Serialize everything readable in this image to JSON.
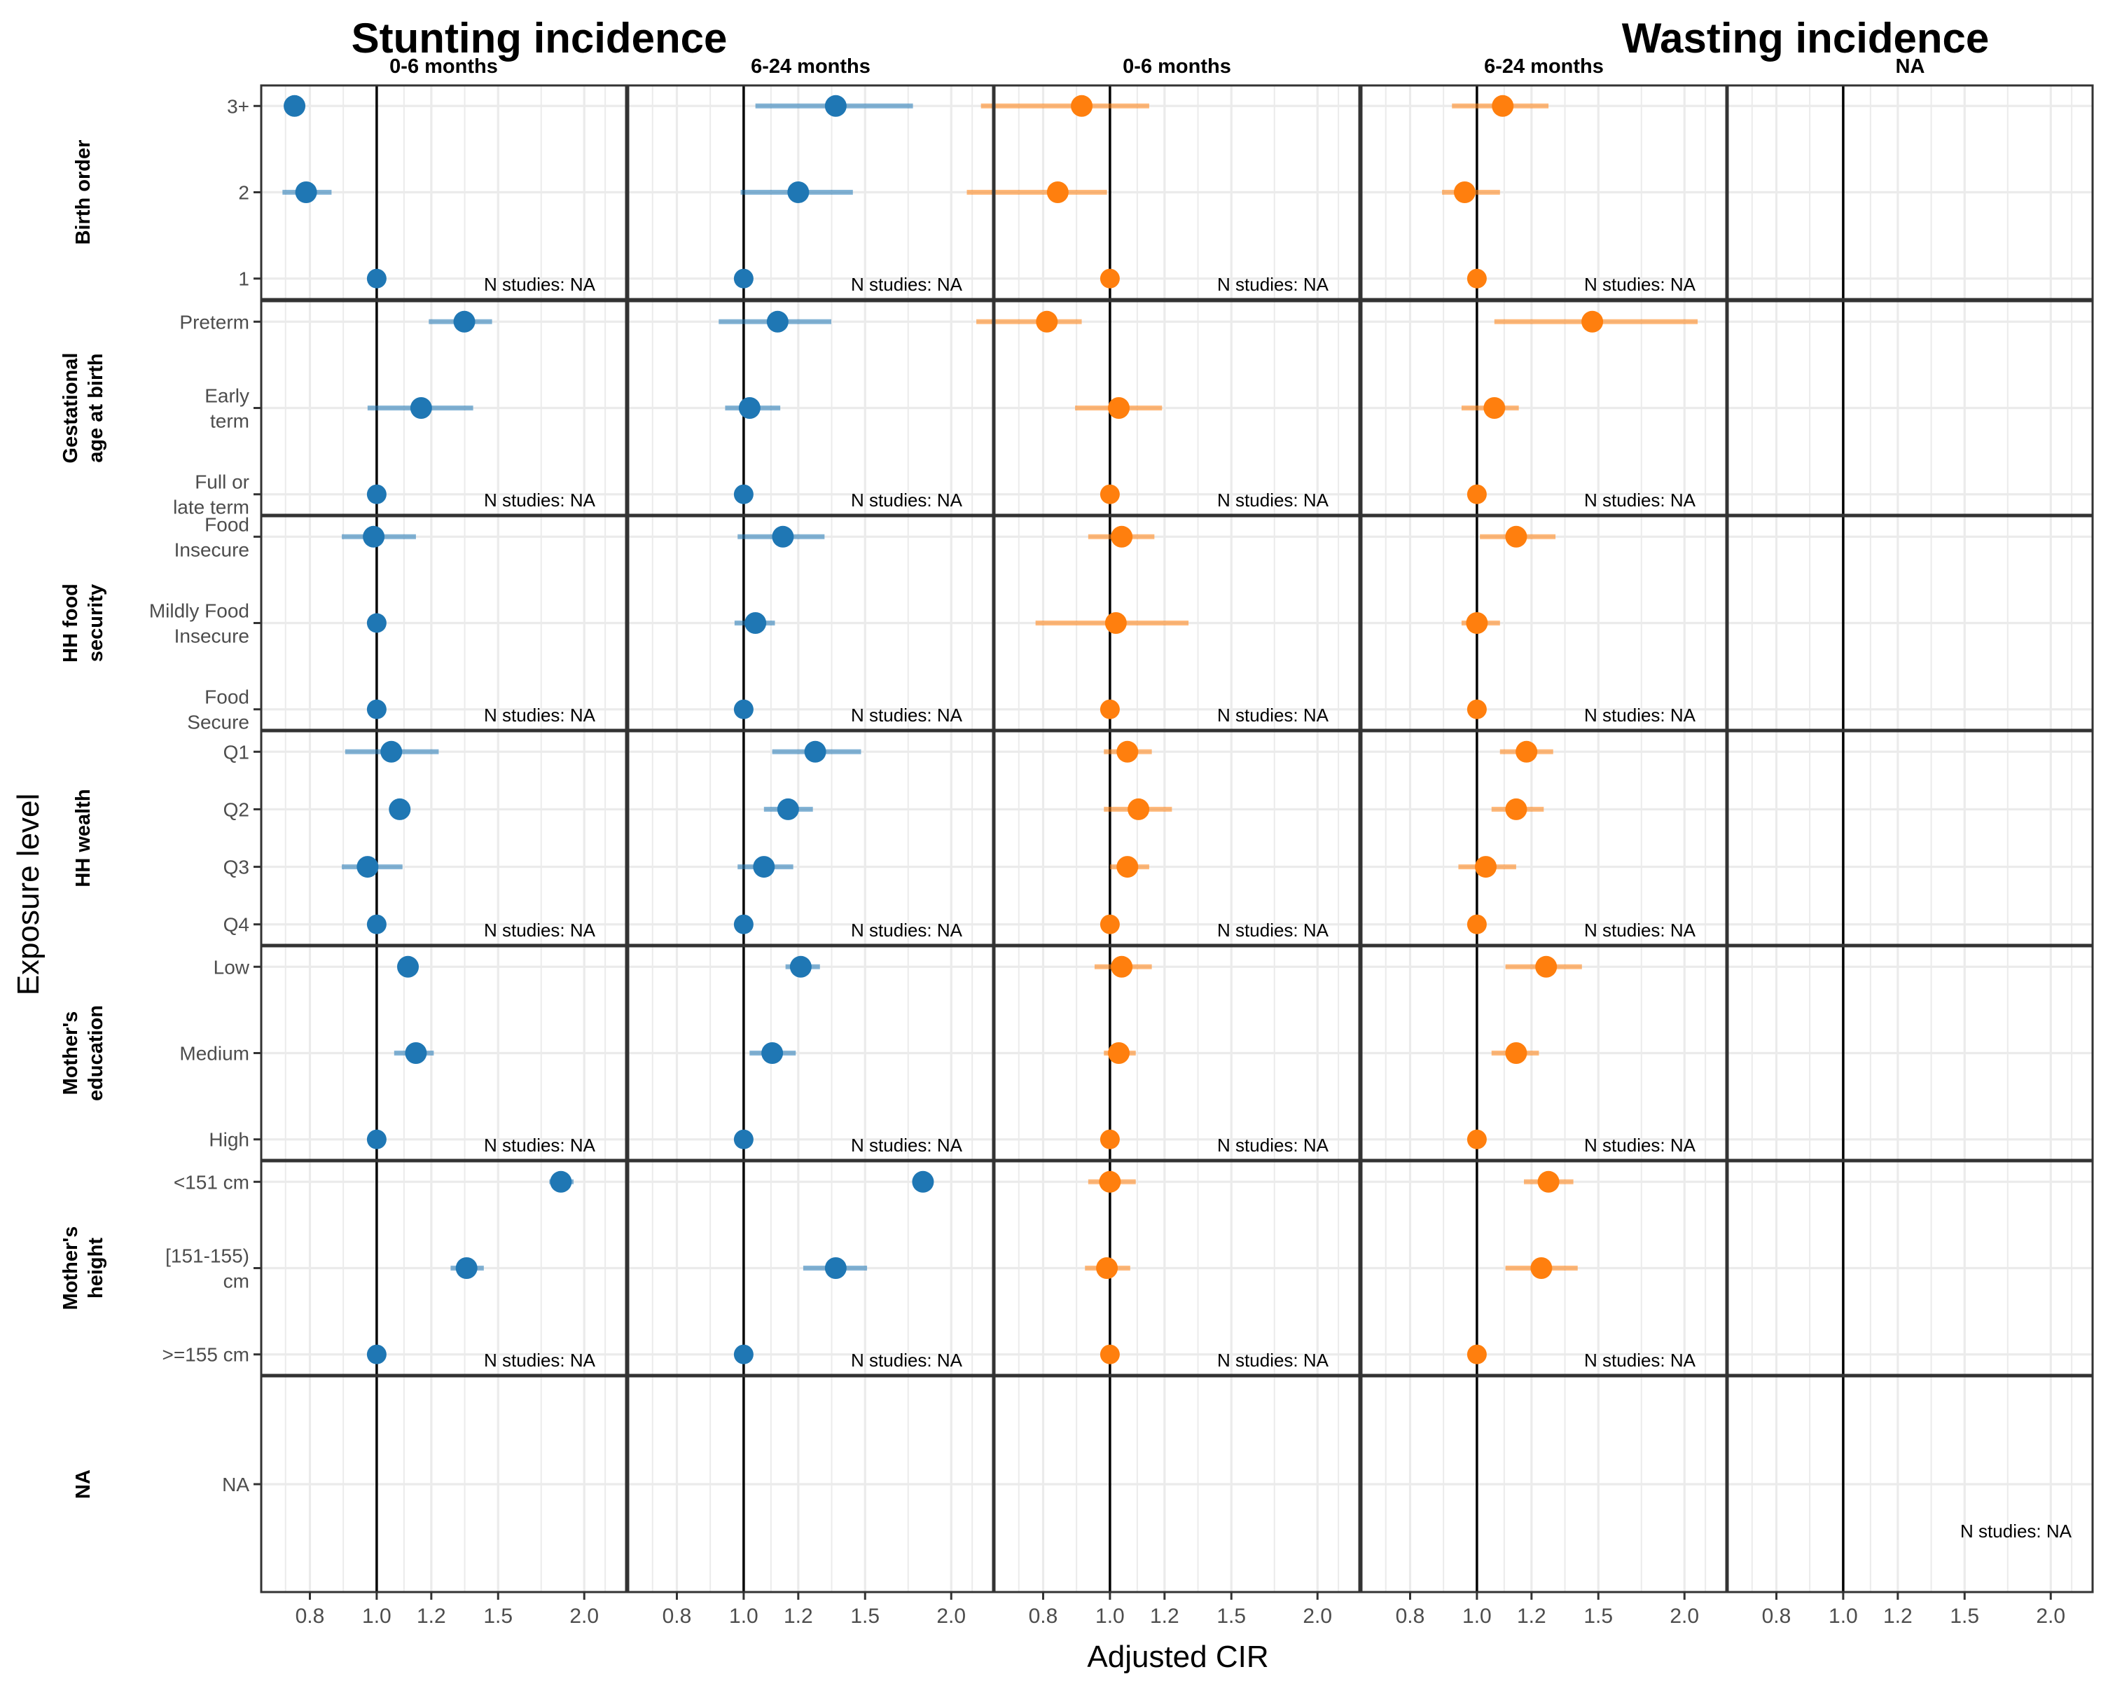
{
  "titles": {
    "left": "Stunting incidence",
    "right": "Wasting incidence"
  },
  "colors": {
    "stunting": "#1F77B4",
    "wasting": "#FF7F0E",
    "frame": "#333333",
    "grid": "#EBEBEB",
    "refline": "#000000"
  },
  "chart_data": {
    "type": "scatter",
    "subtype": "forest-plot",
    "xlabel": "Adjusted CIR",
    "ylabel": "Exposure level",
    "xscale": "log",
    "xlim": [
      0.68,
      2.3
    ],
    "xticks": [
      0.8,
      1.0,
      1.2,
      1.5,
      2.0
    ],
    "xtick_labels": [
      "0.8",
      "1.0",
      "1.2",
      "1.5",
      "2.0"
    ],
    "reference_line": 1.0,
    "grid": true,
    "n_studies_label": "N studies: NA",
    "columns": [
      {
        "label": "0-6 months",
        "outcome": "Stunting incidence",
        "color": "#1F77B4"
      },
      {
        "label": "6-24 months",
        "outcome": "Stunting incidence",
        "color": "#1F77B4"
      },
      {
        "label": "0-6 months",
        "outcome": "Wasting incidence",
        "color": "#FF7F0E"
      },
      {
        "label": "6-24 months",
        "outcome": "Wasting incidence",
        "color": "#FF7F0E"
      },
      {
        "label": "NA",
        "outcome": "NA",
        "color": "#FF7F0E"
      }
    ],
    "rows": [
      {
        "label": "Birth order",
        "levels": [
          "3+",
          "2",
          "1"
        ],
        "cells": [
          [
            {
              "est": 0.76
            },
            {
              "est": 0.79,
              "lo": 0.73,
              "hi": 0.86
            },
            {
              "est": 1.0
            }
          ],
          [
            {
              "est": 1.36,
              "lo": 1.04,
              "hi": 1.76
            },
            {
              "est": 1.2,
              "lo": 0.99,
              "hi": 1.44
            },
            {
              "est": 1.0
            }
          ],
          [
            {
              "est": 0.91,
              "lo": 0.65,
              "hi": 1.14
            },
            {
              "est": 0.84,
              "lo": 0.62,
              "hi": 0.99
            },
            {
              "est": 1.0
            }
          ],
          [
            {
              "est": 1.09,
              "lo": 0.92,
              "hi": 1.27
            },
            {
              "est": 0.96,
              "lo": 0.89,
              "hi": 1.08
            },
            {
              "est": 1.0
            }
          ],
          [
            null,
            null,
            null
          ]
        ]
      },
      {
        "label": "Gestational age at birth",
        "levels": [
          "Preterm",
          "Early term",
          "Full or late term"
        ],
        "cells": [
          [
            {
              "est": 1.34,
              "lo": 1.19,
              "hi": 1.47
            },
            {
              "est": 1.16,
              "lo": 0.97,
              "hi": 1.38
            },
            {
              "est": 1.0
            }
          ],
          [
            {
              "est": 1.12,
              "lo": 0.92,
              "hi": 1.34
            },
            {
              "est": 1.02,
              "lo": 0.94,
              "hi": 1.13
            },
            {
              "est": 1.0
            }
          ],
          [
            {
              "est": 0.81,
              "lo": 0.64,
              "hi": 0.91
            },
            {
              "est": 1.03,
              "lo": 0.89,
              "hi": 1.19
            },
            {
              "est": 1.0
            }
          ],
          [
            {
              "est": 1.47,
              "lo": 1.06,
              "hi": 2.09
            },
            {
              "est": 1.06,
              "lo": 0.95,
              "hi": 1.15
            },
            {
              "est": 1.0
            }
          ],
          [
            null,
            null,
            null
          ]
        ]
      },
      {
        "label": "HH food security",
        "levels": [
          "Food Insecure",
          "Mildly Food Insecure",
          "Food Secure"
        ],
        "cells": [
          [
            {
              "est": 0.99,
              "lo": 0.89,
              "hi": 1.14
            },
            {
              "est": 1.0
            },
            {
              "est": 1.0
            }
          ],
          [
            {
              "est": 1.14,
              "lo": 0.98,
              "hi": 1.31
            },
            {
              "est": 1.04,
              "lo": 0.97,
              "hi": 1.11
            },
            {
              "est": 1.0
            }
          ],
          [
            {
              "est": 1.04,
              "lo": 0.93,
              "hi": 1.16
            },
            {
              "est": 1.02,
              "lo": 0.78,
              "hi": 1.3
            },
            {
              "est": 1.0
            }
          ],
          [
            {
              "est": 1.14,
              "lo": 1.01,
              "hi": 1.3
            },
            {
              "est": 1.0,
              "lo": 0.95,
              "hi": 1.08
            },
            {
              "est": 1.0
            }
          ],
          [
            null,
            null,
            null
          ]
        ]
      },
      {
        "label": "HH wealth",
        "levels": [
          "Q1",
          "Q2",
          "Q3",
          "Q4"
        ],
        "cells": [
          [
            {
              "est": 1.05,
              "lo": 0.9,
              "hi": 1.23
            },
            {
              "est": 1.08
            },
            {
              "est": 0.97,
              "lo": 0.89,
              "hi": 1.09
            },
            {
              "est": 1.0
            }
          ],
          [
            {
              "est": 1.27,
              "lo": 1.1,
              "hi": 1.48
            },
            {
              "est": 1.16,
              "lo": 1.07,
              "hi": 1.26
            },
            {
              "est": 1.07,
              "lo": 0.98,
              "hi": 1.18
            },
            {
              "est": 1.0
            }
          ],
          [
            {
              "est": 1.06,
              "lo": 0.98,
              "hi": 1.15
            },
            {
              "est": 1.1,
              "lo": 0.98,
              "hi": 1.23
            },
            {
              "est": 1.06,
              "lo": 1.0,
              "hi": 1.14
            },
            {
              "est": 1.0
            }
          ],
          [
            {
              "est": 1.18,
              "lo": 1.08,
              "hi": 1.29
            },
            {
              "est": 1.14,
              "lo": 1.05,
              "hi": 1.25
            },
            {
              "est": 1.03,
              "lo": 0.94,
              "hi": 1.14
            },
            {
              "est": 1.0
            }
          ],
          [
            null,
            null,
            null,
            null
          ]
        ]
      },
      {
        "label": "Mother's education",
        "levels": [
          "Low",
          "Medium",
          "High"
        ],
        "cells": [
          [
            {
              "est": 1.11
            },
            {
              "est": 1.14,
              "lo": 1.06,
              "hi": 1.21
            },
            {
              "est": 1.0
            }
          ],
          [
            {
              "est": 1.21,
              "lo": 1.15,
              "hi": 1.29
            },
            {
              "est": 1.1,
              "lo": 1.02,
              "hi": 1.19
            },
            {
              "est": 1.0
            }
          ],
          [
            {
              "est": 1.04,
              "lo": 0.95,
              "hi": 1.15
            },
            {
              "est": 1.03,
              "lo": 0.98,
              "hi": 1.09
            },
            {
              "est": 1.0
            }
          ],
          [
            {
              "est": 1.26,
              "lo": 1.1,
              "hi": 1.42
            },
            {
              "est": 1.14,
              "lo": 1.05,
              "hi": 1.23
            },
            {
              "est": 1.0
            }
          ],
          [
            null,
            null,
            null
          ]
        ]
      },
      {
        "label": "Mother's height",
        "levels": [
          "<151 cm",
          "[151-155) cm",
          ">=155 cm"
        ],
        "cells": [
          [
            {
              "est": 1.85,
              "lo": 1.78,
              "hi": 1.93
            },
            {
              "est": 1.35,
              "lo": 1.28,
              "hi": 1.43
            },
            {
              "est": 1.0
            }
          ],
          [
            {
              "est": 1.82
            },
            {
              "est": 1.36,
              "lo": 1.22,
              "hi": 1.51
            },
            {
              "est": 1.0
            }
          ],
          [
            {
              "est": 1.0,
              "lo": 0.93,
              "hi": 1.09
            },
            {
              "est": 0.99,
              "lo": 0.92,
              "hi": 1.07
            },
            {
              "est": 1.0
            }
          ],
          [
            {
              "est": 1.27,
              "lo": 1.17,
              "hi": 1.38
            },
            {
              "est": 1.24,
              "lo": 1.1,
              "hi": 1.4
            },
            {
              "est": 1.0
            }
          ],
          [
            null,
            null,
            null
          ]
        ]
      },
      {
        "label": "NA",
        "levels": [
          "NA"
        ],
        "cells": [
          [
            null
          ],
          [
            null
          ],
          [
            null
          ],
          [
            null
          ],
          [
            null
          ]
        ]
      }
    ]
  }
}
